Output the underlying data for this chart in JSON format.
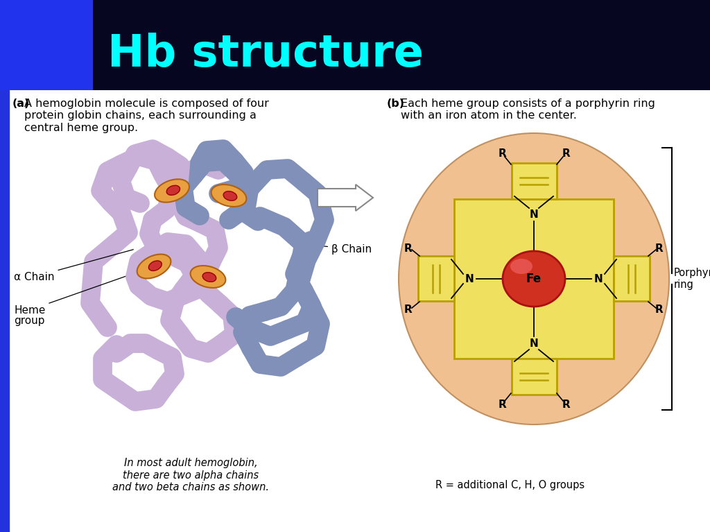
{
  "title": "Hb structure",
  "title_color": "#00ffff",
  "title_bg_dark": "#050520",
  "title_bg_blue": "#2222cc",
  "bg_color": "#050520",
  "content_bg": "#ffffff",
  "left_bar_color": "#2233dd",
  "caption_a_bold": "(a)",
  "caption_a_text": " A hemoglobin molecule is composed of four\n     protein globin chains, each surrounding a\n     central heme group.",
  "caption_b_bold": "(b)",
  "caption_b_text": " Each heme group consists of a porphyrin ring\n     with an iron atom in the center.",
  "bottom_text": "In most adult hemoglobin,\nthere are two alpha chains\nand two beta chains as shown.",
  "r_label": "R = additional C, H, O groups",
  "porphyrin_label": "Porphyrin\nring",
  "alpha_chain": "α Chain",
  "beta_chain": "β Chain",
  "heme_group": "Heme\ngroup",
  "fe_label": "Fe",
  "n_label": "N",
  "alpha_color": "#c8b0d8",
  "beta_color": "#8090b8",
  "heme_orange": "#e8a040",
  "heme_red": "#cc3030",
  "porphyrin_bg": "#f0c090",
  "porphyrin_yellow": "#f0e060",
  "porphyrin_yellow_edge": "#b8a000"
}
